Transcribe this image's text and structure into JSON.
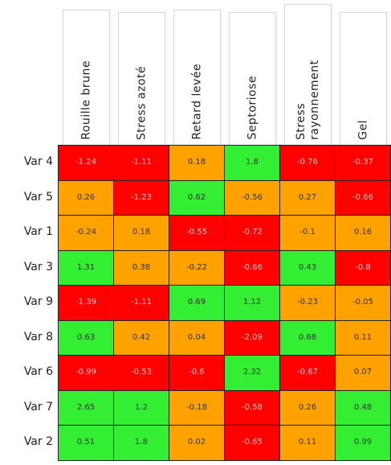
{
  "table": {
    "columns": [
      "Rouille brune",
      "Stress azoté",
      "Retard levée",
      "Septoriose",
      "Stress rayonnement",
      "Gel"
    ],
    "rows": [
      {
        "label": "Var 4",
        "values": [
          -1.24,
          -1.11,
          0.18,
          1.8,
          -0.76,
          -0.37
        ],
        "colors": [
          "#ff0000",
          "#ff0000",
          "#ffa200",
          "#33ee33",
          "#ff0000",
          "#ff0000"
        ]
      },
      {
        "label": "Var 5",
        "values": [
          0.26,
          -1.23,
          0.62,
          -0.56,
          0.27,
          -0.66
        ],
        "colors": [
          "#ffa200",
          "#ff0000",
          "#33ee33",
          "#ffa200",
          "#ffa200",
          "#ff0000"
        ]
      },
      {
        "label": "Var 1",
        "values": [
          -0.24,
          0.18,
          -0.55,
          -0.72,
          -0.1,
          0.16
        ],
        "colors": [
          "#ffa200",
          "#ffa200",
          "#ff0000",
          "#ff0000",
          "#ffa200",
          "#ffa200"
        ]
      },
      {
        "label": "Var 3",
        "values": [
          1.31,
          0.38,
          -0.22,
          -0.66,
          0.43,
          -0.8
        ],
        "colors": [
          "#33ee33",
          "#ffa200",
          "#ffa200",
          "#ff0000",
          "#33ee33",
          "#ff0000"
        ]
      },
      {
        "label": "Var 9",
        "values": [
          -1.39,
          -1.11,
          0.69,
          1.12,
          -0.23,
          -0.05
        ],
        "colors": [
          "#ff0000",
          "#ff0000",
          "#33ee33",
          "#33ee33",
          "#ffa200",
          "#ffa200"
        ]
      },
      {
        "label": "Var 8",
        "values": [
          0.63,
          0.42,
          0.04,
          -2.09,
          0.68,
          0.11
        ],
        "colors": [
          "#33ee33",
          "#ffa200",
          "#ffa200",
          "#ff0000",
          "#33ee33",
          "#ffa200"
        ]
      },
      {
        "label": "Var 6",
        "values": [
          -0.99,
          -0.53,
          -0.6,
          2.32,
          -0.67,
          0.07
        ],
        "colors": [
          "#ff0000",
          "#ff0000",
          "#ff0000",
          "#33ee33",
          "#ff0000",
          "#ffa200"
        ]
      },
      {
        "label": "Var 7",
        "values": [
          2.65,
          1.2,
          -0.18,
          -0.58,
          0.26,
          0.48
        ],
        "colors": [
          "#33ee33",
          "#33ee33",
          "#ffa200",
          "#ff0000",
          "#ffa200",
          "#33ee33"
        ]
      },
      {
        "label": "Var 2",
        "values": [
          0.51,
          1.8,
          0.02,
          -0.65,
          0.11,
          0.99
        ],
        "colors": [
          "#33ee33",
          "#33ee33",
          "#ffa200",
          "#ff0000",
          "#ffa200",
          "#33ee33"
        ]
      }
    ]
  }
}
